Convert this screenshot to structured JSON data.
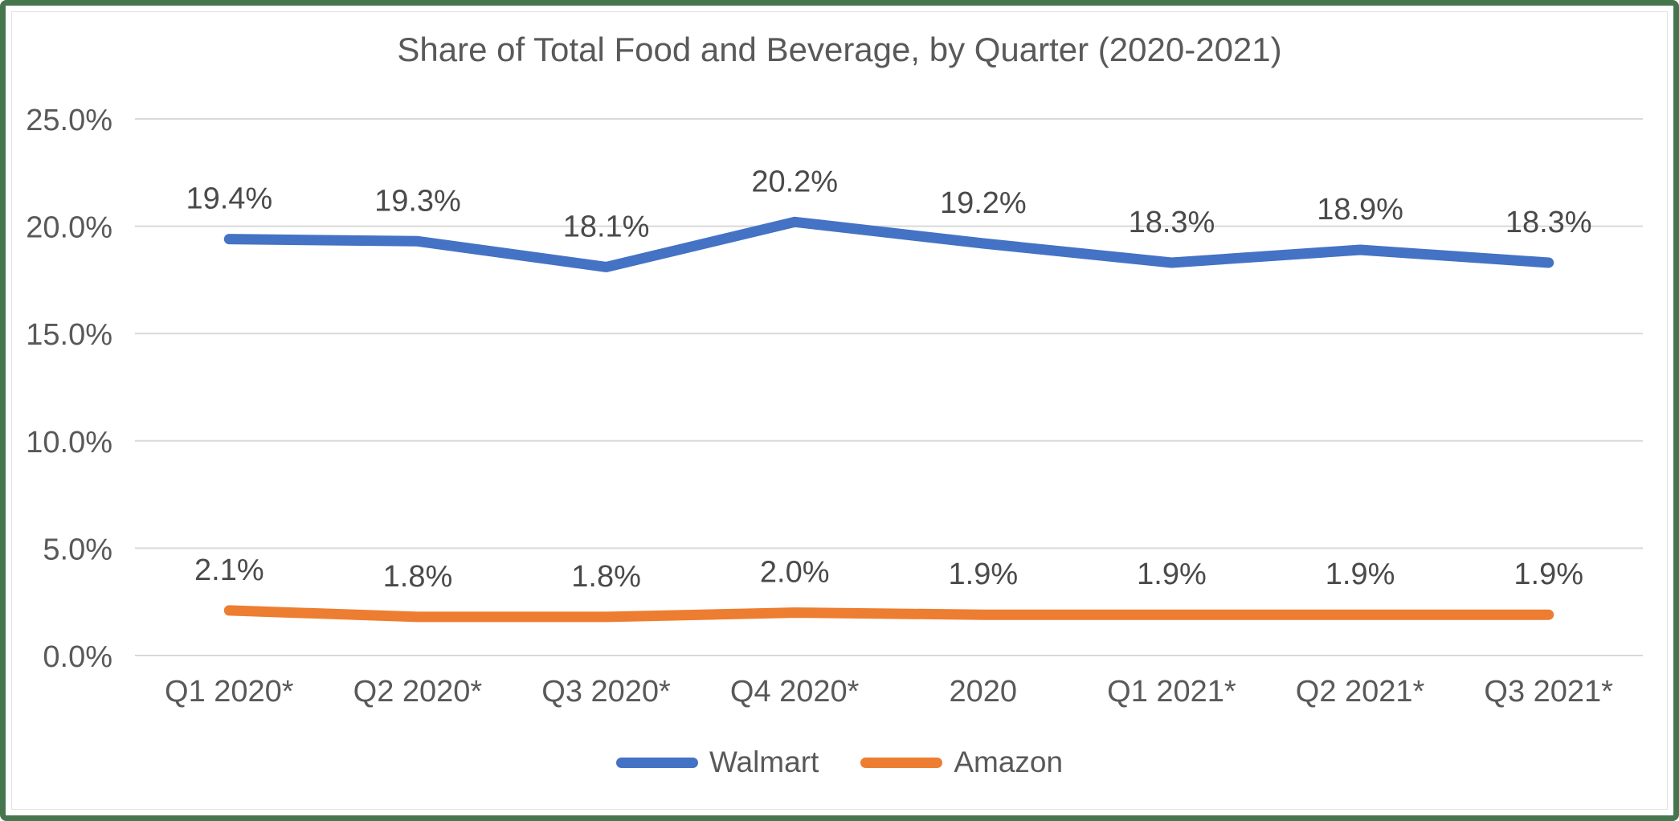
{
  "frame": {
    "border_color": "#45764E",
    "inner_border_color": "#e3e3e3",
    "background": "#ffffff"
  },
  "chart_data": {
    "type": "line",
    "title": "Share of Total Food and Beverage, by Quarter (2020-2021)",
    "categories": [
      "Q1 2020*",
      "Q2 2020*",
      "Q3 2020*",
      "Q4 2020*",
      "2020",
      "Q1 2021*",
      "Q2 2021*",
      "Q3 2021*"
    ],
    "series": [
      {
        "name": "Walmart",
        "color": "#4472C4",
        "values": [
          19.4,
          19.3,
          18.1,
          20.2,
          19.2,
          18.3,
          18.9,
          18.3
        ],
        "labels": [
          "19.4%",
          "19.3%",
          "18.1%",
          "20.2%",
          "19.2%",
          "18.3%",
          "18.9%",
          "18.3%"
        ]
      },
      {
        "name": "Amazon",
        "color": "#ED7D31",
        "values": [
          2.1,
          1.8,
          1.8,
          2.0,
          1.9,
          1.9,
          1.9,
          1.9
        ],
        "labels": [
          "2.1%",
          "1.8%",
          "1.8%",
          "2.0%",
          "1.9%",
          "1.9%",
          "1.9%",
          "1.9%"
        ]
      }
    ],
    "y_axis": {
      "min": 0,
      "max": 25,
      "step": 5,
      "tick_labels": [
        "0.0%",
        "5.0%",
        "10.0%",
        "15.0%",
        "20.0%",
        "25.0%"
      ]
    },
    "grid": true,
    "legend_position": "bottom",
    "colors": {
      "gridline": "#D9D9D9",
      "axis_text": "#595959",
      "data_label": "#4a4a4a",
      "title_text": "#595959"
    }
  }
}
